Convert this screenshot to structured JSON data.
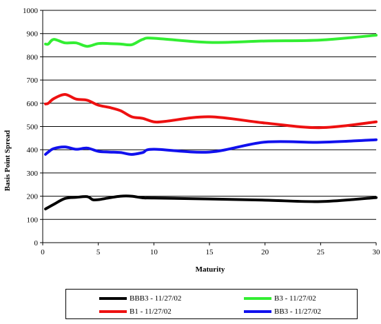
{
  "chart_data": {
    "type": "line",
    "title": "",
    "xlabel": "Maturity",
    "ylabel": "Basis Point Spread",
    "xlim": [
      0,
      30
    ],
    "ylim": [
      0,
      1000
    ],
    "xticks": [
      0,
      5,
      10,
      15,
      20,
      25,
      30
    ],
    "yticks": [
      0,
      100,
      200,
      300,
      400,
      500,
      600,
      700,
      800,
      900,
      1000
    ],
    "grid": "horizontal",
    "legend_position": "bottom",
    "series": [
      {
        "name": "BBB3 - 11/27/02",
        "color": "#000000",
        "x": [
          0.25,
          1,
          2,
          3,
          4,
          4.5,
          5,
          6,
          7,
          8,
          9,
          10,
          15,
          20,
          25,
          30
        ],
        "y": [
          145,
          165,
          190,
          195,
          198,
          185,
          185,
          193,
          200,
          200,
          193,
          192,
          188,
          183,
          177,
          194
        ]
      },
      {
        "name": "B3 - 11/27/02",
        "color": "#33ee33",
        "x": [
          0.25,
          0.5,
          1,
          2,
          3,
          4,
          5,
          6,
          7,
          8,
          9,
          10,
          15,
          20,
          25,
          30
        ],
        "y": [
          855,
          855,
          875,
          860,
          860,
          845,
          857,
          857,
          855,
          852,
          875,
          880,
          862,
          868,
          872,
          893
        ]
      },
      {
        "name": "B1 - 11/27/02",
        "color": "#ee1111",
        "x": [
          0.25,
          0.5,
          1,
          2,
          3,
          4,
          5,
          6,
          7,
          8,
          9,
          10,
          11,
          15,
          20,
          25,
          30
        ],
        "y": [
          597,
          600,
          620,
          638,
          618,
          613,
          592,
          582,
          568,
          542,
          535,
          520,
          522,
          542,
          515,
          495,
          520
        ]
      },
      {
        "name": "BB3 - 11/27/02",
        "color": "#1111ee",
        "x": [
          0.25,
          0.5,
          1,
          2,
          3,
          4,
          5,
          6,
          7,
          8,
          9,
          10,
          15,
          20,
          25,
          30
        ],
        "y": [
          380,
          390,
          405,
          412,
          402,
          407,
          393,
          390,
          388,
          380,
          388,
          402,
          390,
          433,
          432,
          443
        ]
      }
    ]
  }
}
